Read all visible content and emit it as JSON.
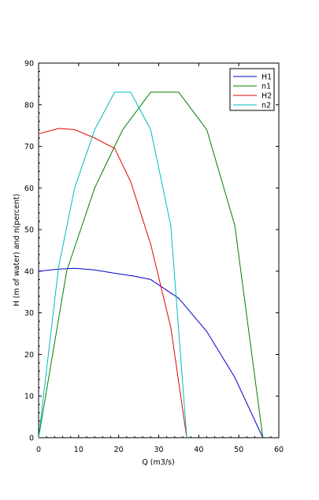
{
  "chart_data": {
    "type": "line",
    "xlabel": "Q (m3/s)",
    "ylabel": "H (m of water) and n(percent)",
    "xlim": [
      0,
      60
    ],
    "ylim": [
      0,
      90
    ],
    "xticks": [
      0,
      10,
      20,
      30,
      40,
      50,
      60
    ],
    "yticks": [
      0,
      10,
      20,
      30,
      40,
      50,
      60,
      70,
      80,
      90
    ],
    "grid": false,
    "legend_position": "top-right",
    "series": [
      {
        "name": "H1",
        "color": "#0000cc",
        "x": [
          0,
          5,
          9,
          14,
          19,
          24,
          28,
          35,
          42,
          49,
          56
        ],
        "y": [
          40,
          40.5,
          40.7,
          40.3,
          39.5,
          38.8,
          38,
          33.5,
          25.5,
          14.5,
          0
        ]
      },
      {
        "name": "n1",
        "color": "#008000",
        "x": [
          0,
          7,
          14,
          21,
          28,
          35,
          42,
          49,
          56
        ],
        "y": [
          0,
          40,
          60,
          74,
          83,
          83,
          74,
          51,
          0
        ]
      },
      {
        "name": "H2",
        "color": "#e00000",
        "x": [
          0,
          5,
          9,
          14,
          19,
          23,
          28,
          33,
          37
        ],
        "y": [
          73,
          74.3,
          74,
          72,
          69.5,
          61.5,
          46.5,
          26.5,
          0
        ]
      },
      {
        "name": "n2",
        "color": "#00bbbb",
        "x": [
          0,
          5,
          9,
          14,
          19,
          23,
          28,
          33,
          37
        ],
        "y": [
          0,
          41,
          60,
          74,
          83,
          83,
          74,
          51,
          0
        ]
      }
    ]
  }
}
